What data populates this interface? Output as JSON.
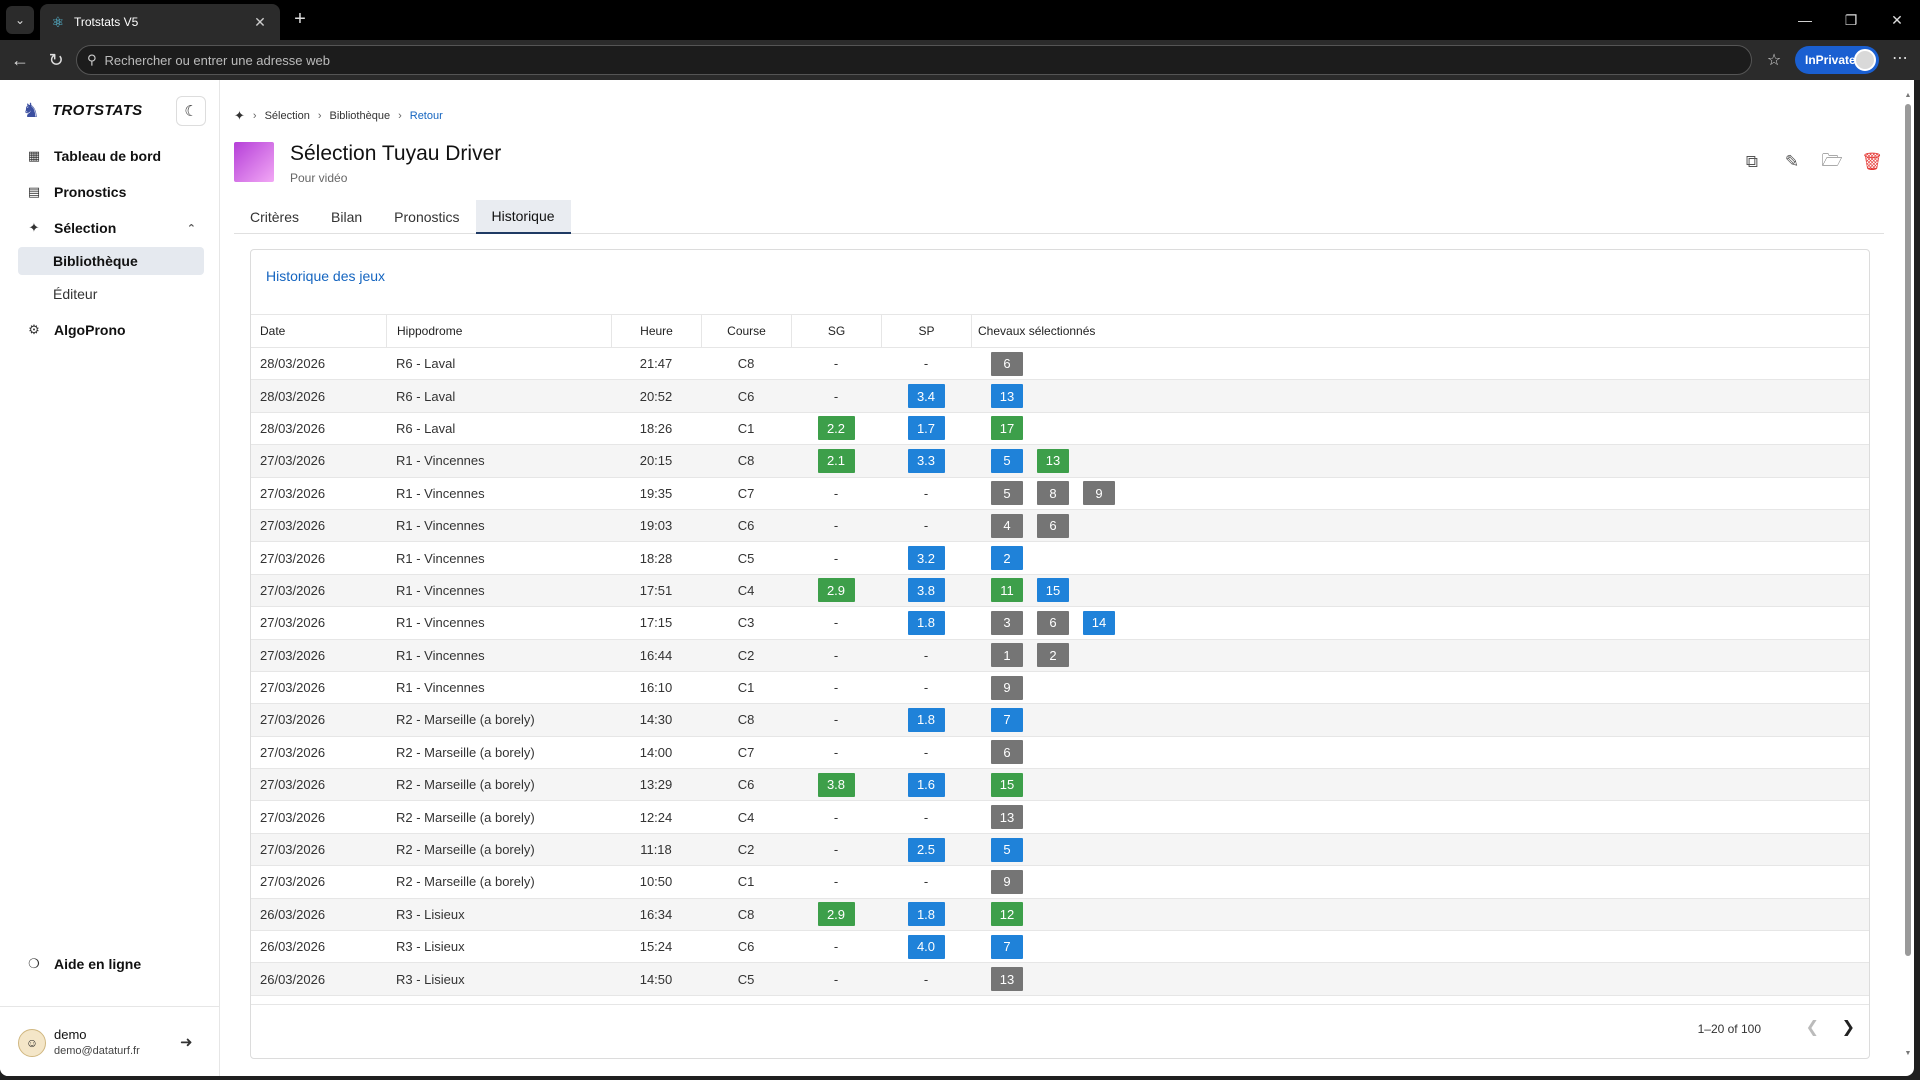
{
  "browser": {
    "tab_title": "Trotstats V5",
    "address_placeholder": "Rechercher ou entrer une adresse web",
    "inprivate_label": "InPrivate"
  },
  "sidebar": {
    "brand": "TROTSTATS",
    "items": [
      {
        "label": "Tableau de bord",
        "icon": "dashboard-icon"
      },
      {
        "label": "Pronostics",
        "icon": "list-icon"
      },
      {
        "label": "Sélection",
        "icon": "puzzle-icon"
      },
      {
        "label": "Bibliothèque"
      },
      {
        "label": "Éditeur"
      },
      {
        "label": "AlgoProno",
        "icon": "gear-icon"
      }
    ],
    "help_label": "Aide en ligne",
    "user": {
      "name": "demo",
      "email": "demo@dataturf.fr"
    }
  },
  "breadcrumb": {
    "items": [
      "Sélection",
      "Bibliothèque"
    ],
    "back": "Retour"
  },
  "page": {
    "title": "Sélection Tuyau Driver",
    "subtitle": "Pour vidéo"
  },
  "tabs": [
    "Critères",
    "Bilan",
    "Pronostics",
    "Historique"
  ],
  "active_tab": "Historique",
  "card_title": "Historique des jeux",
  "columns": {
    "date": "Date",
    "hippodrome": "Hippodrome",
    "heure": "Heure",
    "course": "Course",
    "sg": "SG",
    "sp": "SP",
    "chevaux": "Chevaux sélectionnés"
  },
  "colors": {
    "green": "#3d9f4a",
    "blue": "#1f82d9",
    "gray": "#757575",
    "accent": "#1565c0"
  },
  "rows": [
    {
      "date": "28/03/2026",
      "hippodrome": "R6 - Laval",
      "heure": "21:47",
      "course": "C8",
      "sg": "-",
      "sp": "-",
      "chevaux": [
        {
          "n": "6",
          "c": "gray"
        }
      ]
    },
    {
      "date": "28/03/2026",
      "hippodrome": "R6 - Laval",
      "heure": "20:52",
      "course": "C6",
      "sg": "-",
      "sp": "3.4",
      "chevaux": [
        {
          "n": "13",
          "c": "blue"
        }
      ]
    },
    {
      "date": "28/03/2026",
      "hippodrome": "R6 - Laval",
      "heure": "18:26",
      "course": "C1",
      "sg": "2.2",
      "sp": "1.7",
      "chevaux": [
        {
          "n": "17",
          "c": "green"
        }
      ]
    },
    {
      "date": "27/03/2026",
      "hippodrome": "R1 - Vincennes",
      "heure": "20:15",
      "course": "C8",
      "sg": "2.1",
      "sp": "3.3",
      "chevaux": [
        {
          "n": "5",
          "c": "blue"
        },
        {
          "n": "13",
          "c": "green"
        }
      ]
    },
    {
      "date": "27/03/2026",
      "hippodrome": "R1 - Vincennes",
      "heure": "19:35",
      "course": "C7",
      "sg": "-",
      "sp": "-",
      "chevaux": [
        {
          "n": "5",
          "c": "gray"
        },
        {
          "n": "8",
          "c": "gray"
        },
        {
          "n": "9",
          "c": "gray"
        }
      ]
    },
    {
      "date": "27/03/2026",
      "hippodrome": "R1 - Vincennes",
      "heure": "19:03",
      "course": "C6",
      "sg": "-",
      "sp": "-",
      "chevaux": [
        {
          "n": "4",
          "c": "gray"
        },
        {
          "n": "6",
          "c": "gray"
        }
      ]
    },
    {
      "date": "27/03/2026",
      "hippodrome": "R1 - Vincennes",
      "heure": "18:28",
      "course": "C5",
      "sg": "-",
      "sp": "3.2",
      "chevaux": [
        {
          "n": "2",
          "c": "blue"
        }
      ]
    },
    {
      "date": "27/03/2026",
      "hippodrome": "R1 - Vincennes",
      "heure": "17:51",
      "course": "C4",
      "sg": "2.9",
      "sp": "3.8",
      "chevaux": [
        {
          "n": "11",
          "c": "green"
        },
        {
          "n": "15",
          "c": "blue"
        }
      ]
    },
    {
      "date": "27/03/2026",
      "hippodrome": "R1 - Vincennes",
      "heure": "17:15",
      "course": "C3",
      "sg": "-",
      "sp": "1.8",
      "chevaux": [
        {
          "n": "3",
          "c": "gray"
        },
        {
          "n": "6",
          "c": "gray"
        },
        {
          "n": "14",
          "c": "blue"
        }
      ]
    },
    {
      "date": "27/03/2026",
      "hippodrome": "R1 - Vincennes",
      "heure": "16:44",
      "course": "C2",
      "sg": "-",
      "sp": "-",
      "chevaux": [
        {
          "n": "1",
          "c": "gray"
        },
        {
          "n": "2",
          "c": "gray"
        }
      ]
    },
    {
      "date": "27/03/2026",
      "hippodrome": "R1 - Vincennes",
      "heure": "16:10",
      "course": "C1",
      "sg": "-",
      "sp": "-",
      "chevaux": [
        {
          "n": "9",
          "c": "gray"
        }
      ]
    },
    {
      "date": "27/03/2026",
      "hippodrome": "R2 - Marseille (a borely)",
      "heure": "14:30",
      "course": "C8",
      "sg": "-",
      "sp": "1.8",
      "chevaux": [
        {
          "n": "7",
          "c": "blue"
        }
      ]
    },
    {
      "date": "27/03/2026",
      "hippodrome": "R2 - Marseille (a borely)",
      "heure": "14:00",
      "course": "C7",
      "sg": "-",
      "sp": "-",
      "chevaux": [
        {
          "n": "6",
          "c": "gray"
        }
      ]
    },
    {
      "date": "27/03/2026",
      "hippodrome": "R2 - Marseille (a borely)",
      "heure": "13:29",
      "course": "C6",
      "sg": "3.8",
      "sp": "1.6",
      "chevaux": [
        {
          "n": "15",
          "c": "green"
        }
      ]
    },
    {
      "date": "27/03/2026",
      "hippodrome": "R2 - Marseille (a borely)",
      "heure": "12:24",
      "course": "C4",
      "sg": "-",
      "sp": "-",
      "chevaux": [
        {
          "n": "13",
          "c": "gray"
        }
      ]
    },
    {
      "date": "27/03/2026",
      "hippodrome": "R2 - Marseille (a borely)",
      "heure": "11:18",
      "course": "C2",
      "sg": "-",
      "sp": "2.5",
      "chevaux": [
        {
          "n": "5",
          "c": "blue"
        }
      ]
    },
    {
      "date": "27/03/2026",
      "hippodrome": "R2 - Marseille (a borely)",
      "heure": "10:50",
      "course": "C1",
      "sg": "-",
      "sp": "-",
      "chevaux": [
        {
          "n": "9",
          "c": "gray"
        }
      ]
    },
    {
      "date": "26/03/2026",
      "hippodrome": "R3 - Lisieux",
      "heure": "16:34",
      "course": "C8",
      "sg": "2.9",
      "sp": "1.8",
      "chevaux": [
        {
          "n": "12",
          "c": "green"
        }
      ]
    },
    {
      "date": "26/03/2026",
      "hippodrome": "R3 - Lisieux",
      "heure": "15:24",
      "course": "C6",
      "sg": "-",
      "sp": "4.0",
      "chevaux": [
        {
          "n": "7",
          "c": "blue"
        }
      ]
    },
    {
      "date": "26/03/2026",
      "hippodrome": "R3 - Lisieux",
      "heure": "14:50",
      "course": "C5",
      "sg": "-",
      "sp": "-",
      "chevaux": [
        {
          "n": "13",
          "c": "gray"
        }
      ]
    }
  ],
  "pagination": {
    "info": "1–20 of 100"
  }
}
